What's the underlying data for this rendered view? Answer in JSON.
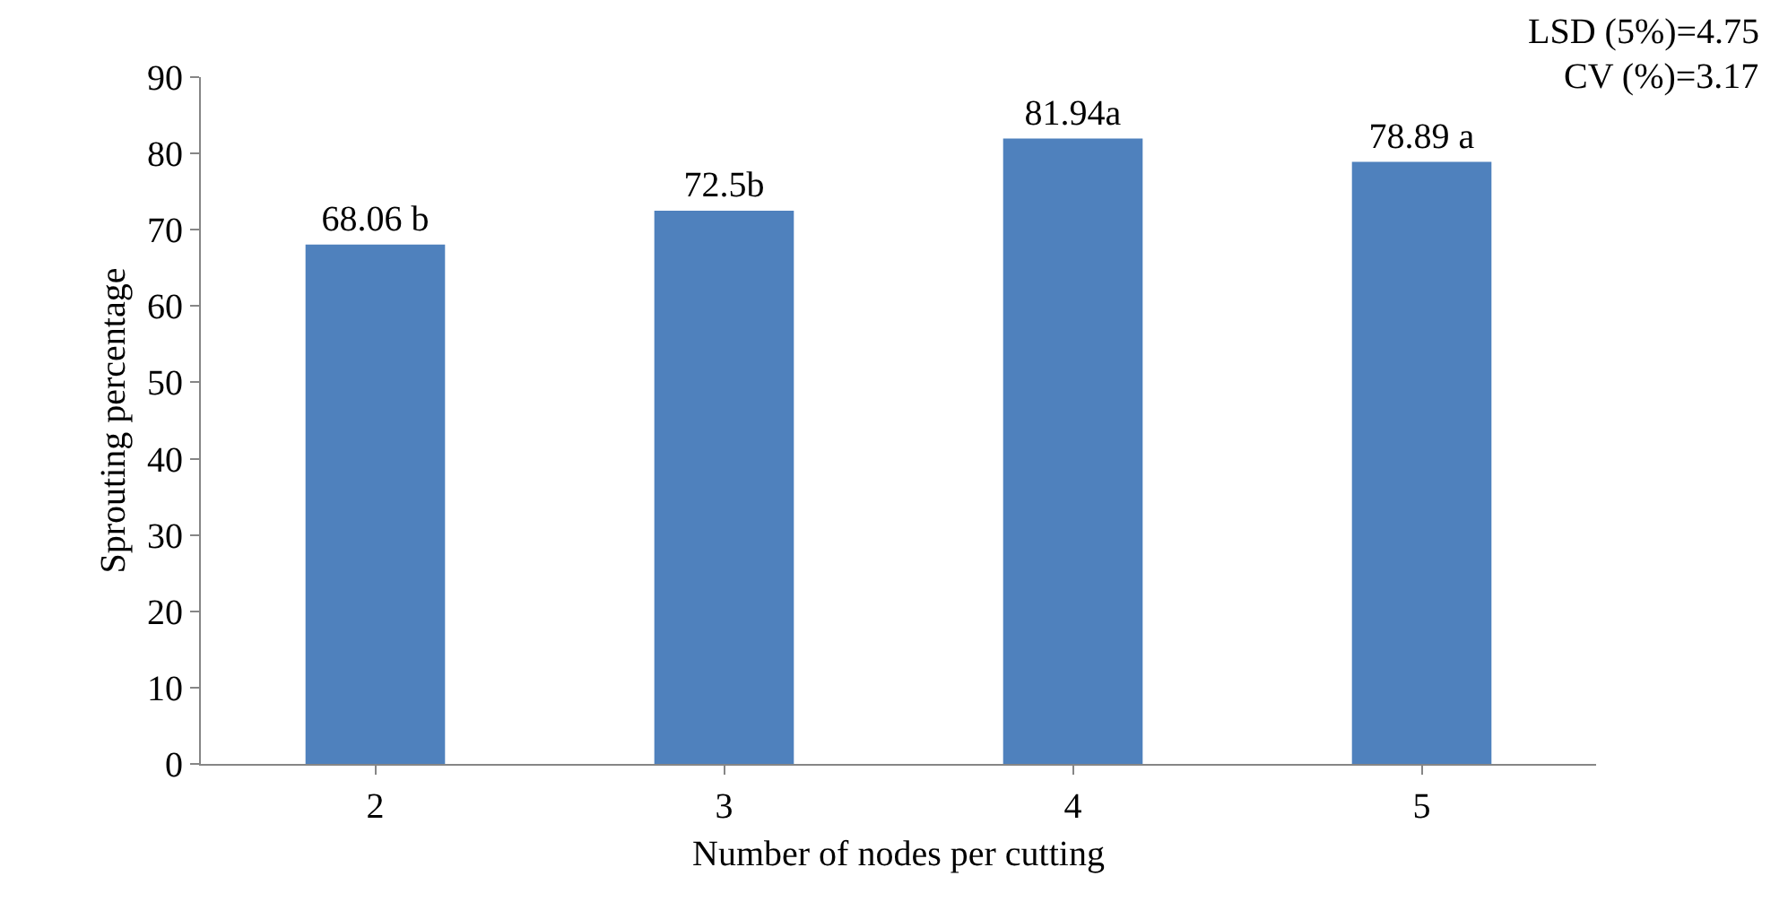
{
  "chart_data": {
    "type": "bar",
    "xlabel": "Number of nodes per cutting",
    "ylabel": "Sprouting percentage",
    "categories": [
      "2",
      "3",
      "4",
      "5"
    ],
    "values": [
      68.06,
      72.5,
      81.94,
      78.89
    ],
    "value_labels": [
      "68.06 b",
      "72.5b",
      "81.94a",
      "78.89 a"
    ],
    "color": "#4f81bd",
    "ylim": [
      0,
      90
    ],
    "yticks": [
      0,
      10,
      20,
      30,
      40,
      50,
      60,
      70,
      80,
      90
    ],
    "annotations": [
      "LSD (5%)=4.75",
      "CV (%)=3.17"
    ],
    "legend": false
  }
}
